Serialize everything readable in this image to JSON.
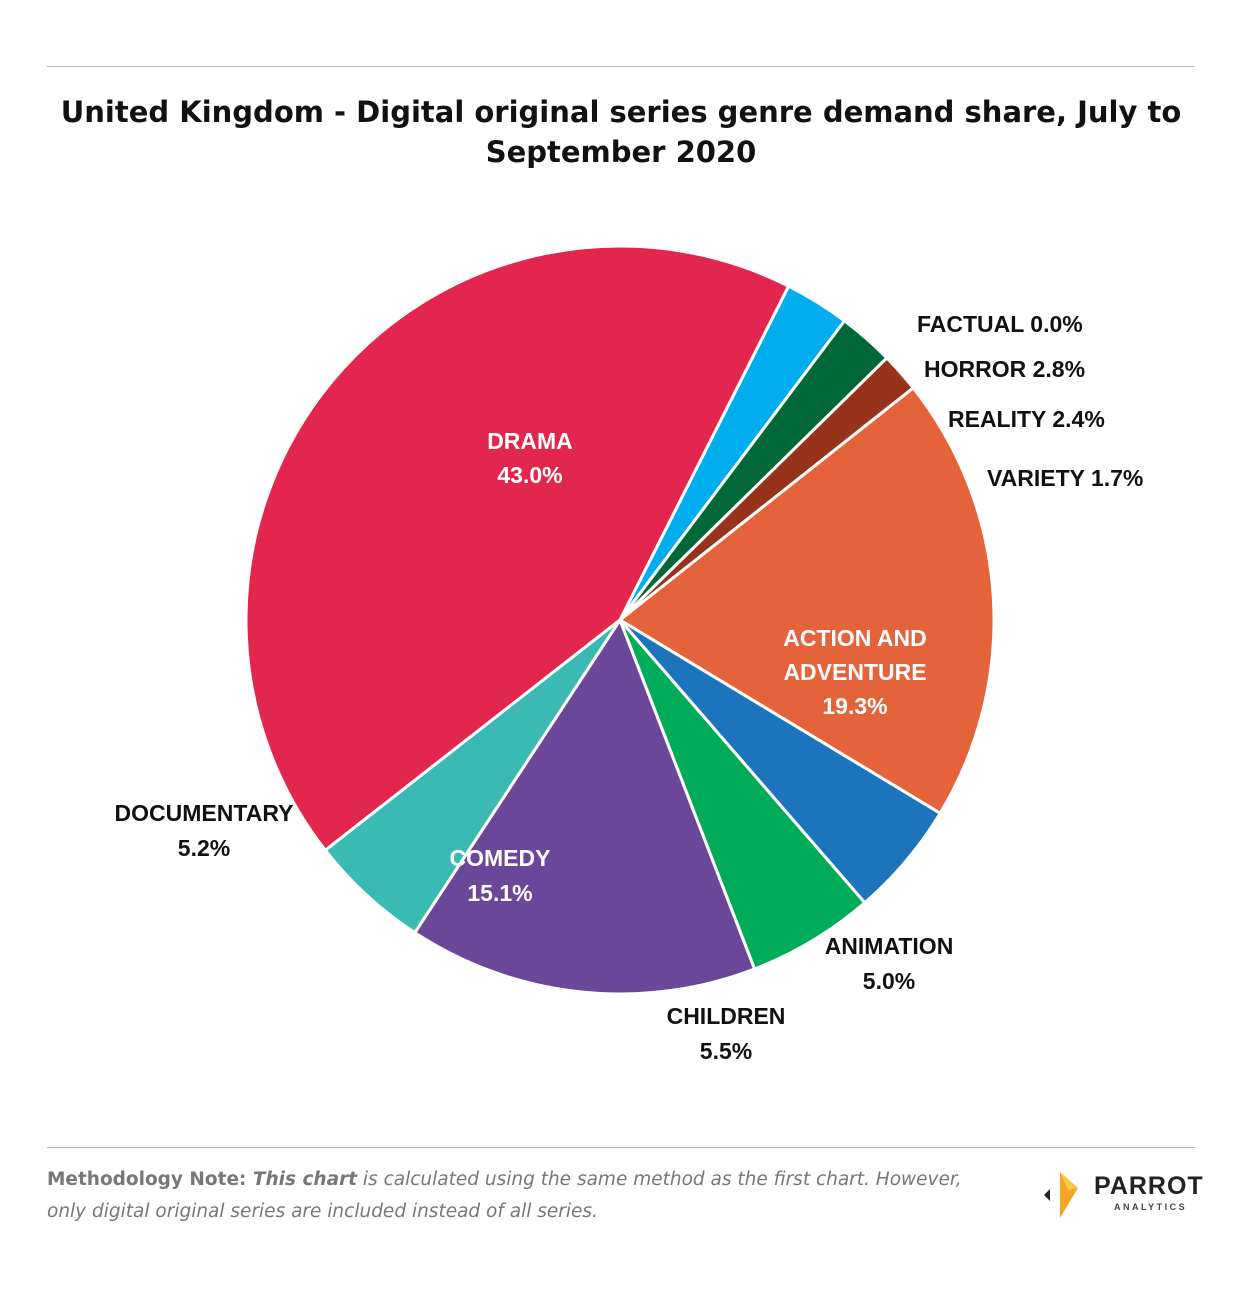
{
  "title": "United Kingdom - Digital original series genre demand share, July to September 2020",
  "chart_data": {
    "type": "pie",
    "title": "United Kingdom - Digital original series genre demand share, July to September 2020",
    "slices": [
      {
        "name": "DRAMA",
        "value": 43.0,
        "display": "43.0%",
        "color": "#e2264d"
      },
      {
        "name": "FACTUAL",
        "value": 0.0,
        "display": "0.0%",
        "color": "#8a8a8a"
      },
      {
        "name": "HORROR",
        "value": 2.8,
        "display": "2.8%",
        "color": "#00aeef"
      },
      {
        "name": "REALITY",
        "value": 2.4,
        "display": "2.4%",
        "color": "#006838"
      },
      {
        "name": "VARIETY",
        "value": 1.7,
        "display": "1.7%",
        "color": "#96331a"
      },
      {
        "name": "ACTION AND ADVENTURE",
        "value": 19.3,
        "display": "19.3%",
        "color": "#e5633a"
      },
      {
        "name": "ANIMATION",
        "value": 5.0,
        "display": "5.0%",
        "color": "#1c75bc"
      },
      {
        "name": "CHILDREN",
        "value": 5.5,
        "display": "5.5%",
        "color": "#00ab5a"
      },
      {
        "name": "COMEDY",
        "value": 15.1,
        "display": "15.1%",
        "color": "#6b479a"
      },
      {
        "name": "DOCUMENTARY",
        "value": 5.2,
        "display": "5.2%",
        "color": "#3abab2"
      }
    ]
  },
  "labels": {
    "drama": [
      "DRAMA",
      "43.0%"
    ],
    "factual": [
      "FACTUAL 0.0%"
    ],
    "horror": [
      "HORROR 2.8%"
    ],
    "reality": [
      "REALITY 2.4%"
    ],
    "variety": [
      "VARIETY 1.7%"
    ],
    "action": [
      "ACTION AND",
      "ADVENTURE",
      "19.3%"
    ],
    "animation": [
      "ANIMATION",
      "5.0%"
    ],
    "children": [
      "CHILDREN",
      "5.5%"
    ],
    "comedy": [
      "COMEDY",
      "15.1%"
    ],
    "documentary": [
      "DOCUMENTARY",
      "5.2%"
    ]
  },
  "note": {
    "lead": "Methodology Note: ",
    "emphasis": "This chart",
    "rest": " is calculated using the same method as the first chart. However, only digital original series are included instead of all series."
  },
  "logo": {
    "word": "PARROT",
    "sub": "ANALYTICS",
    "colors": [
      "#f5a623",
      "#f7c948",
      "#222222"
    ]
  }
}
